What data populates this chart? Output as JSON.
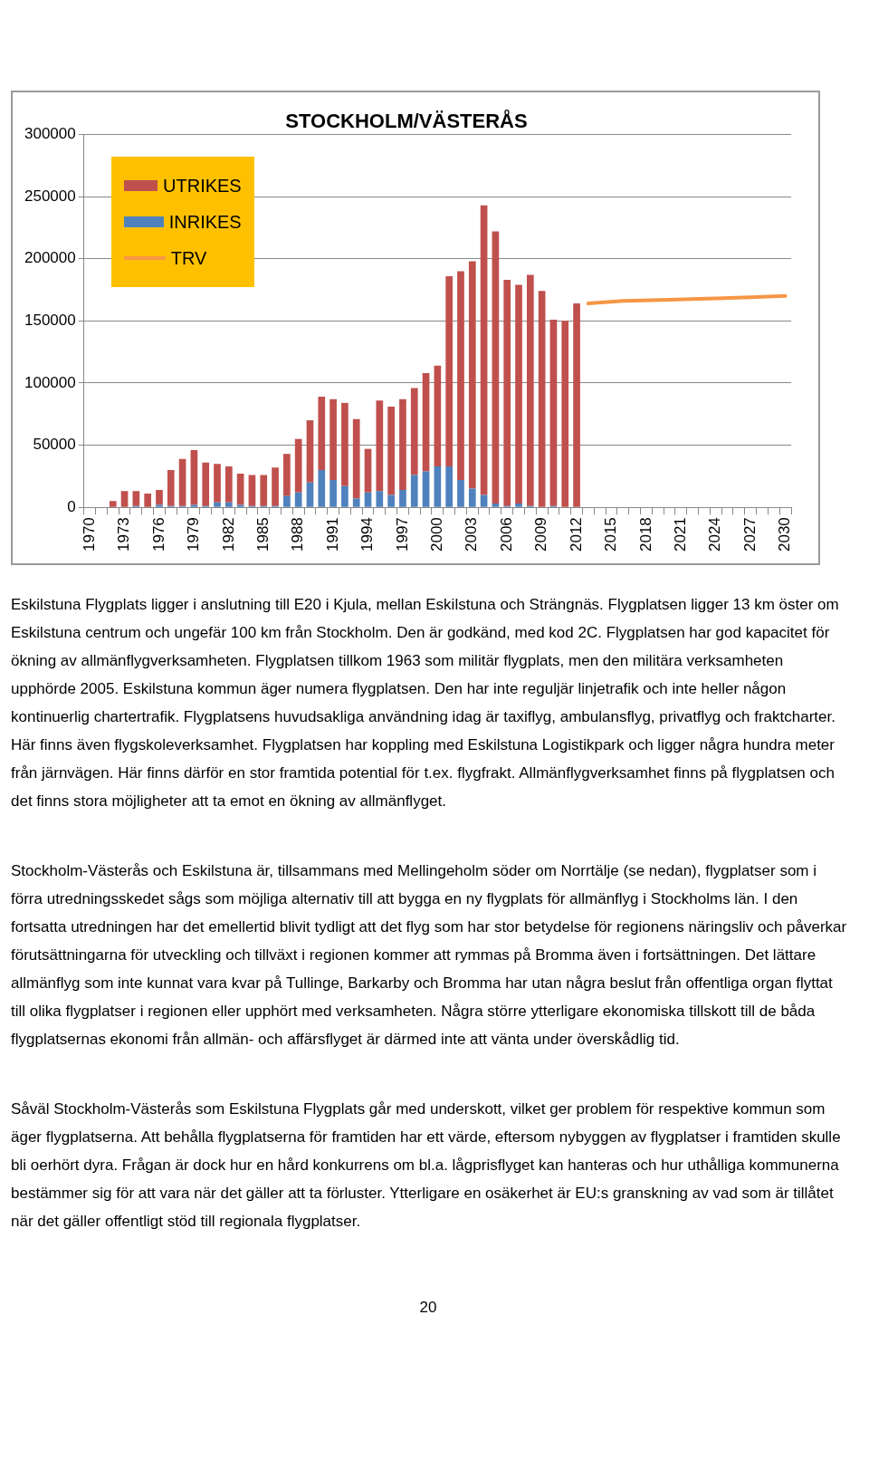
{
  "chart_data": {
    "type": "bar",
    "title": "STOCKHOLM/VÄSTERÅS",
    "categories": [
      "1970",
      null,
      null,
      "1973",
      null,
      null,
      "1976",
      null,
      null,
      "1979",
      null,
      null,
      "1982",
      null,
      null,
      "1985",
      null,
      null,
      "1988",
      null,
      null,
      "1991",
      null,
      null,
      "1994",
      null,
      null,
      "1997",
      null,
      null,
      "2000",
      null,
      null,
      "2003",
      null,
      null,
      "2006",
      null,
      null,
      "2009",
      null,
      null,
      "2012",
      null,
      null,
      "2015",
      null,
      null,
      "2018",
      null,
      null,
      "2021",
      null,
      null,
      "2024",
      null,
      null,
      "2027",
      null,
      null,
      "2030"
    ],
    "stacked": true,
    "series": [
      {
        "name": "INRIKES",
        "color": "#4f81bd",
        "values": [
          0,
          0,
          0,
          0,
          1000,
          0,
          2000,
          1000,
          1000,
          2000,
          1000,
          4000,
          4000,
          2000,
          1000,
          1000,
          1000,
          9000,
          12000,
          20000,
          30000,
          22000,
          17000,
          7000,
          12000,
          13000,
          10000,
          14000,
          26000,
          29000,
          33000,
          33000,
          22000,
          15000,
          10000,
          3000,
          1000,
          3000,
          1000,
          0,
          1000,
          0,
          0,
          null,
          null,
          null,
          null,
          null,
          null,
          null,
          null,
          null,
          null,
          null,
          null,
          null,
          null,
          null,
          null,
          null,
          null
        ]
      },
      {
        "name": "UTRIKES",
        "color": "#c0504d",
        "values": [
          0,
          0,
          5000,
          13000,
          12000,
          11000,
          12000,
          29000,
          38000,
          44000,
          35000,
          31000,
          29000,
          25000,
          25000,
          25000,
          31000,
          34000,
          43000,
          50000,
          59000,
          65000,
          67000,
          64000,
          35000,
          73000,
          71000,
          73000,
          70000,
          79000,
          81000,
          153000,
          168000,
          183000,
          233000,
          219000,
          182000,
          176000,
          186000,
          174000,
          150000,
          150000,
          164000,
          null,
          null,
          null,
          null,
          null,
          null,
          null,
          null,
          null,
          null,
          null,
          null,
          null,
          null,
          null,
          null,
          null,
          null
        ]
      },
      {
        "name": "TRV",
        "type": "line",
        "color": "#f79646",
        "values": [
          null,
          null,
          null,
          null,
          null,
          null,
          null,
          null,
          null,
          null,
          null,
          null,
          null,
          null,
          null,
          null,
          null,
          null,
          null,
          null,
          null,
          null,
          null,
          null,
          null,
          null,
          null,
          null,
          null,
          null,
          null,
          null,
          null,
          null,
          null,
          null,
          null,
          null,
          null,
          null,
          null,
          null,
          null,
          164000,
          null,
          null,
          166000,
          null,
          null,
          null,
          167000,
          null,
          null,
          null,
          168000,
          null,
          null,
          169000,
          null,
          null,
          170000
        ]
      }
    ],
    "ylim": [
      0,
      300000
    ],
    "yticks": [
      0,
      50000,
      100000,
      150000,
      200000,
      250000,
      300000
    ],
    "grid": "y",
    "legend": "top left",
    "marker": "none",
    "annotations": [
      "Eskilstuna Flygplats ligger i anslutning till E20 i Kjula, mellan Eskilstuna och Strängnäs. Flygplatsen ligger 13 km öster om Eskilstuna centrum och ungefär 100 km från Stockholm. Den är godkänd, med kod 2C. Flygplatsen har god kapacitet för ökning av allmänflygverksamheten. Flygplatsen tillkom 1963 som militär flygplats, men den militära verksamheten upphörde 2005. Eskilstuna kommun äger numera flygplatsen. Den har inte reguljär linjetrafik och inte heller någon kontinuerlig chartertrafik. Flygplatsens huvudsakliga användning idag är taxiflyg, ambulansflyg, privatflyg och fraktcharter. Här finns även flygskoleverksamhet. Flygplatsen har koppling med Eskilstuna Logistikpark och ligger några hundra meter från järnvägen. Här finns därför en stor framtida potential för t.ex. flygfrakt. Allmänflygverksamhet finns på flygplatsen och det finns stora möjligheter att ta emot en ökning av allmänflyget.",
      "Stockholm-Västerås och Eskilstuna är, tillsammans med Mellingeholm söder om Norrtälje (se nedan), flygplatser som i förra utredningsskedet sågs som möjliga alternativ till att bygga en ny flygplats för allmänflyg i Stockholms län. I den fortsatta utredningen har det emellertid blivit tydligt att det flyg som har stor betydelse för regionens näringsliv och påverkar förutsättningarna för utveckling och tillväxt i regionen kommer att rymmas på Bromma även i fortsättningen. Det lättare allmänflyg som inte kunnat vara kvar på Tullinge, Barkarby och Bromma har utan några beslut från offentliga organ flyttat till olika flygplatser i regionen eller upphört med verksamheten. Några större ytterligare ekonomiska tillskott till de båda flygplatsernas ekonomi från allmän- och affärsflyget är därmed inte att vänta under överskådlig tid.",
      "Såväl Stockholm-Västerås som Eskilstuna Flygplats går med underskott, vilket ger problem för respektive kommun som äger flygplatserna. Att behålla flygplatserna för framtiden har ett värde, eftersom nybyggen av flygplatser i framtiden skulle bli oerhört dyra. Frågan är dock hur en hård konkurrens om bl.a. lågprisflyget kan hanteras och hur uthålliga kommunerna bestämmer sig för att vara när det gäller att ta förluster. Ytterligare en osäkerhet är EU:s granskning av vad som är tillåtet när det gäller offentligt stöd till regionala flygplatser.",
      "20"
    ]
  }
}
